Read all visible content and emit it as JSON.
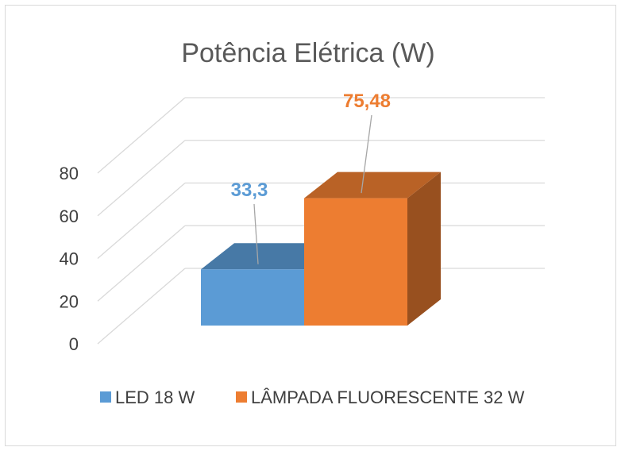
{
  "chart_data": {
    "type": "bar",
    "style": "3d-column",
    "title": "Potência Elétrica (W)",
    "categories": [
      "LED 18 W",
      "LÂMPADA FLUORESCENTE 32 W"
    ],
    "values": [
      33.3,
      75.48
    ],
    "data_labels": [
      "33,3",
      "75,48"
    ],
    "colors": [
      "#5b9bd5",
      "#ed7d31"
    ],
    "label_colors": [
      "#5b9bd5",
      "#ed7d31"
    ],
    "ylim": [
      0,
      80
    ],
    "yticks": [
      0,
      20,
      40,
      60,
      80
    ],
    "ytick_labels": [
      "0",
      "20",
      "40",
      "60",
      "80"
    ],
    "grid": true,
    "legend_position": "bottom",
    "xlabel": "",
    "ylabel": ""
  }
}
